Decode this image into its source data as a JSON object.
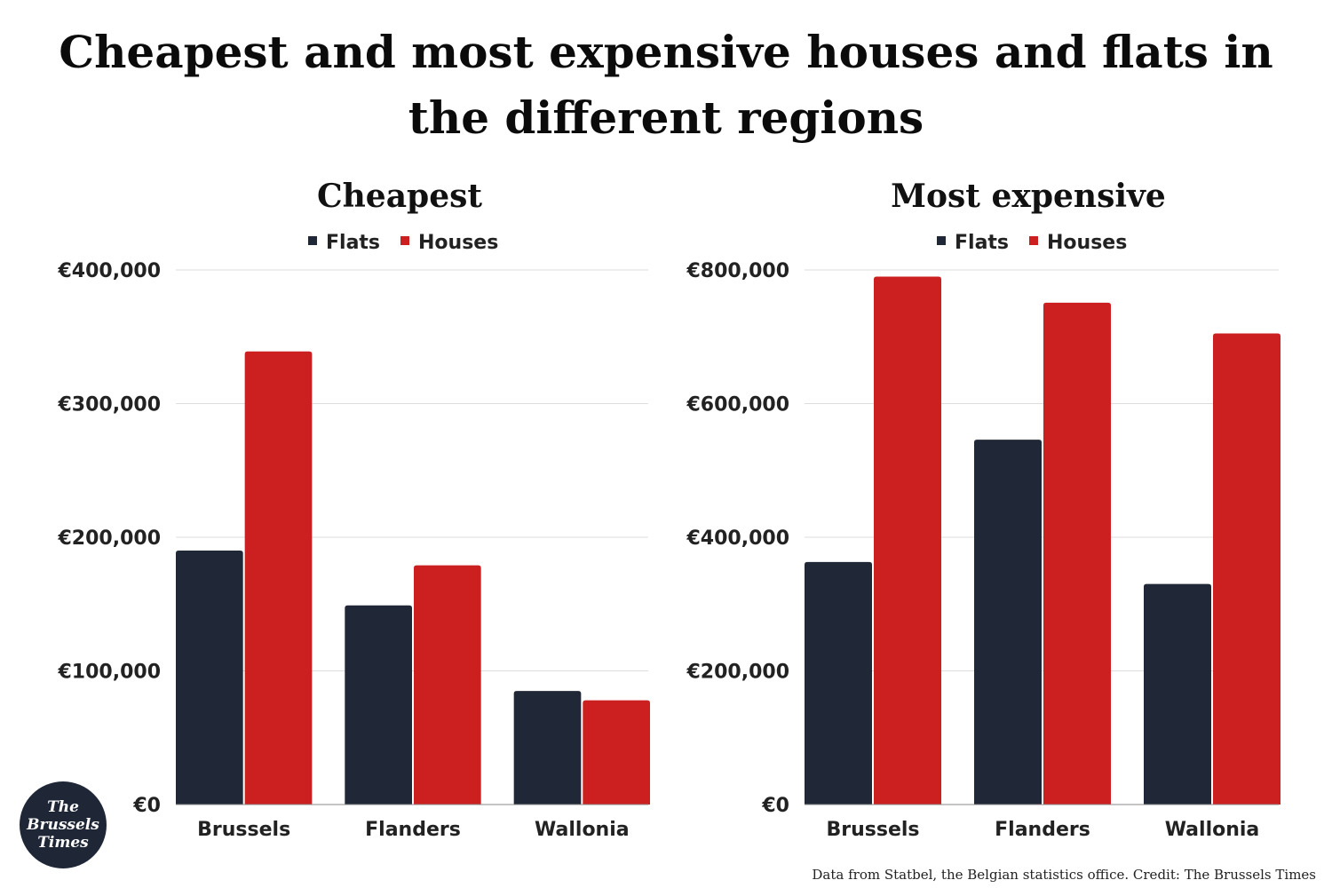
{
  "title": "Cheapest and most expensive houses and flats in the different regions",
  "credit": "Data from Statbel, the Belgian statistics office. Credit: The Brussels Times",
  "logo": {
    "line1": "The",
    "line2": "Brussels",
    "line3": "Times"
  },
  "colors": {
    "flats": "#202736",
    "houses": "#cc1f1f",
    "grid": "#dddddd",
    "axis": "#888888"
  },
  "chart_data": [
    {
      "type": "bar",
      "title": "Cheapest",
      "categories": [
        "Brussels",
        "Flanders",
        "Wallonia"
      ],
      "series": [
        {
          "name": "Flats",
          "values": [
            190000,
            149000,
            85000
          ]
        },
        {
          "name": "Houses",
          "values": [
            339000,
            179000,
            78000
          ]
        }
      ],
      "ylim": [
        0,
        400000
      ],
      "yticks": [
        0,
        100000,
        200000,
        300000,
        400000
      ],
      "ytick_labels": [
        "€0",
        "€100,000",
        "€200,000",
        "€300,000",
        "€400,000"
      ],
      "legend": "top-center",
      "grid": true
    },
    {
      "type": "bar",
      "title": "Most expensive",
      "categories": [
        "Brussels",
        "Flanders",
        "Wallonia"
      ],
      "series": [
        {
          "name": "Flats",
          "values": [
            363000,
            546000,
            330000
          ]
        },
        {
          "name": "Houses",
          "values": [
            790000,
            751000,
            705000
          ]
        }
      ],
      "ylim": [
        0,
        800000
      ],
      "yticks": [
        0,
        200000,
        400000,
        600000,
        800000
      ],
      "ytick_labels": [
        "€0",
        "€200,000",
        "€400,000",
        "€600,000",
        "€800,000"
      ],
      "legend": "top-center",
      "grid": true
    }
  ]
}
